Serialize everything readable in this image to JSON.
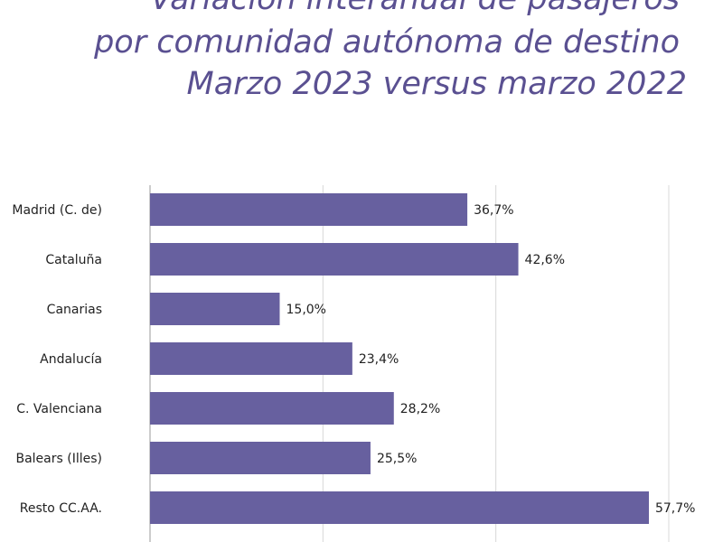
{
  "title": {
    "lines": [
      "Variación interanual de pasajeros",
      "por comunidad autónoma de destino",
      "Marzo 2023 versus marzo 2022"
    ]
  },
  "colors": {
    "bar": "#67609f",
    "title": "#5a5091",
    "grid": "#d8d8d8"
  },
  "chart_data": {
    "type": "bar",
    "orientation": "horizontal",
    "categories": [
      "Madrid (C. de)",
      "Cataluña",
      "Canarias",
      "Andalucía",
      "C. Valenciana",
      "Balears (Illes)",
      "Resto CC.AA."
    ],
    "values": [
      36.7,
      42.6,
      15.0,
      23.4,
      28.2,
      25.5,
      57.7
    ],
    "value_labels": [
      "36,7%",
      "42,6%",
      "15,0%",
      "23,4%",
      "28,2%",
      "25,5%",
      "57,7%"
    ],
    "xlim": [
      0,
      60
    ],
    "grid": true,
    "title": "Variación interanual de pasajeros por comunidad autónoma de destino Marzo 2023 versus marzo 2022"
  }
}
